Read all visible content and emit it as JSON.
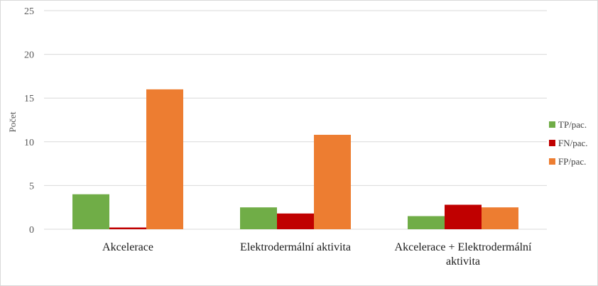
{
  "chart_data": {
    "type": "bar",
    "title": "",
    "xlabel": "",
    "ylabel": "Počet",
    "ylim": [
      0,
      25
    ],
    "yticks": [
      0,
      5,
      10,
      15,
      20,
      25
    ],
    "grid": true,
    "legend_position": "right",
    "categories": [
      [
        "Akcelerace"
      ],
      [
        "Elektrodermální aktivita"
      ],
      [
        "Akcelerace + Elektrodermální",
        "aktivita"
      ]
    ],
    "series": [
      {
        "name": "TP/pac.",
        "color": "#70ad47",
        "values": [
          4.0,
          2.5,
          1.5
        ]
      },
      {
        "name": "FN/pac.",
        "color": "#c00000",
        "values": [
          0.2,
          1.8,
          2.8
        ]
      },
      {
        "name": "FP/pac.",
        "color": "#ed7d31",
        "values": [
          16.0,
          10.8,
          2.5
        ]
      }
    ]
  }
}
